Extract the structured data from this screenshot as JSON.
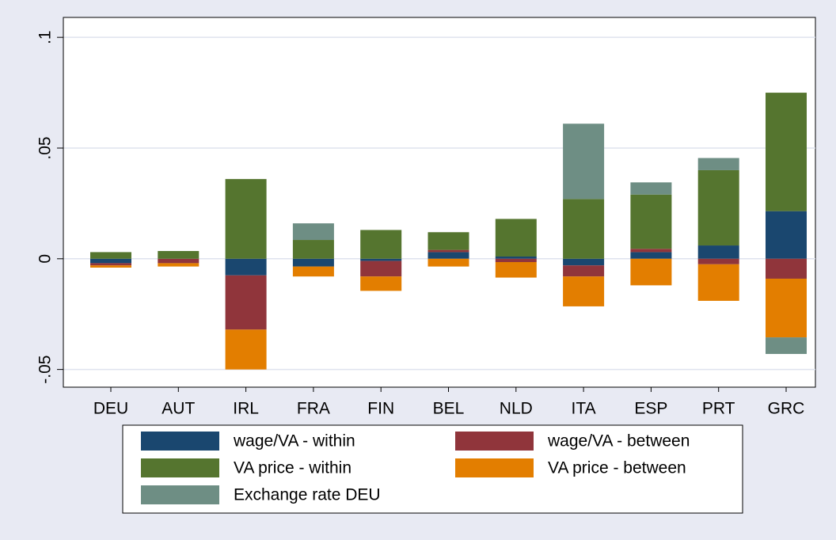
{
  "chart_data": {
    "type": "bar",
    "stacked": true,
    "categories": [
      "DEU",
      "AUT",
      "IRL",
      "FRA",
      "FIN",
      "BEL",
      "NLD",
      "ITA",
      "ESP",
      "PRT",
      "GRC"
    ],
    "series": [
      {
        "name": "wage/VA - within",
        "color": "#1a476f",
        "values": [
          -0.002,
          0,
          -0.0075,
          -0.0035,
          -0.001,
          0.003,
          0.001,
          -0.003,
          0.003,
          0.006,
          0.0215
        ]
      },
      {
        "name": "wage/VA - between",
        "color": "#90353b",
        "values": [
          -0.001,
          -0.002,
          -0.0245,
          0,
          -0.007,
          0.001,
          -0.0015,
          -0.005,
          0.0015,
          -0.0025,
          -0.009
        ]
      },
      {
        "name": "VA price - within",
        "color": "#55752f",
        "values": [
          0.003,
          0.0035,
          0.036,
          0.0085,
          0.013,
          0.008,
          0.017,
          0.027,
          0.0245,
          0.034,
          0.0535
        ]
      },
      {
        "name": "VA price - between",
        "color": "#e37e00",
        "values": [
          -0.001,
          -0.0015,
          -0.018,
          -0.0045,
          -0.0065,
          -0.0035,
          -0.007,
          -0.0135,
          -0.012,
          -0.0165,
          -0.0265
        ]
      },
      {
        "name": "Exchange rate DEU",
        "color": "#6e8e84",
        "values": [
          0,
          0,
          0,
          0.0075,
          0,
          0,
          0,
          0.034,
          0.0055,
          0.0055,
          -0.0075
        ]
      }
    ],
    "ylim": [
      -0.058,
      0.109
    ],
    "yticks": [
      {
        "value": -0.05,
        "label": "-.05"
      },
      0,
      {
        "value": 0.05,
        "label": ".05"
      },
      {
        "value": 0.1,
        "label": ".1"
      }
    ],
    "grid": true,
    "legend": "bottom"
  }
}
